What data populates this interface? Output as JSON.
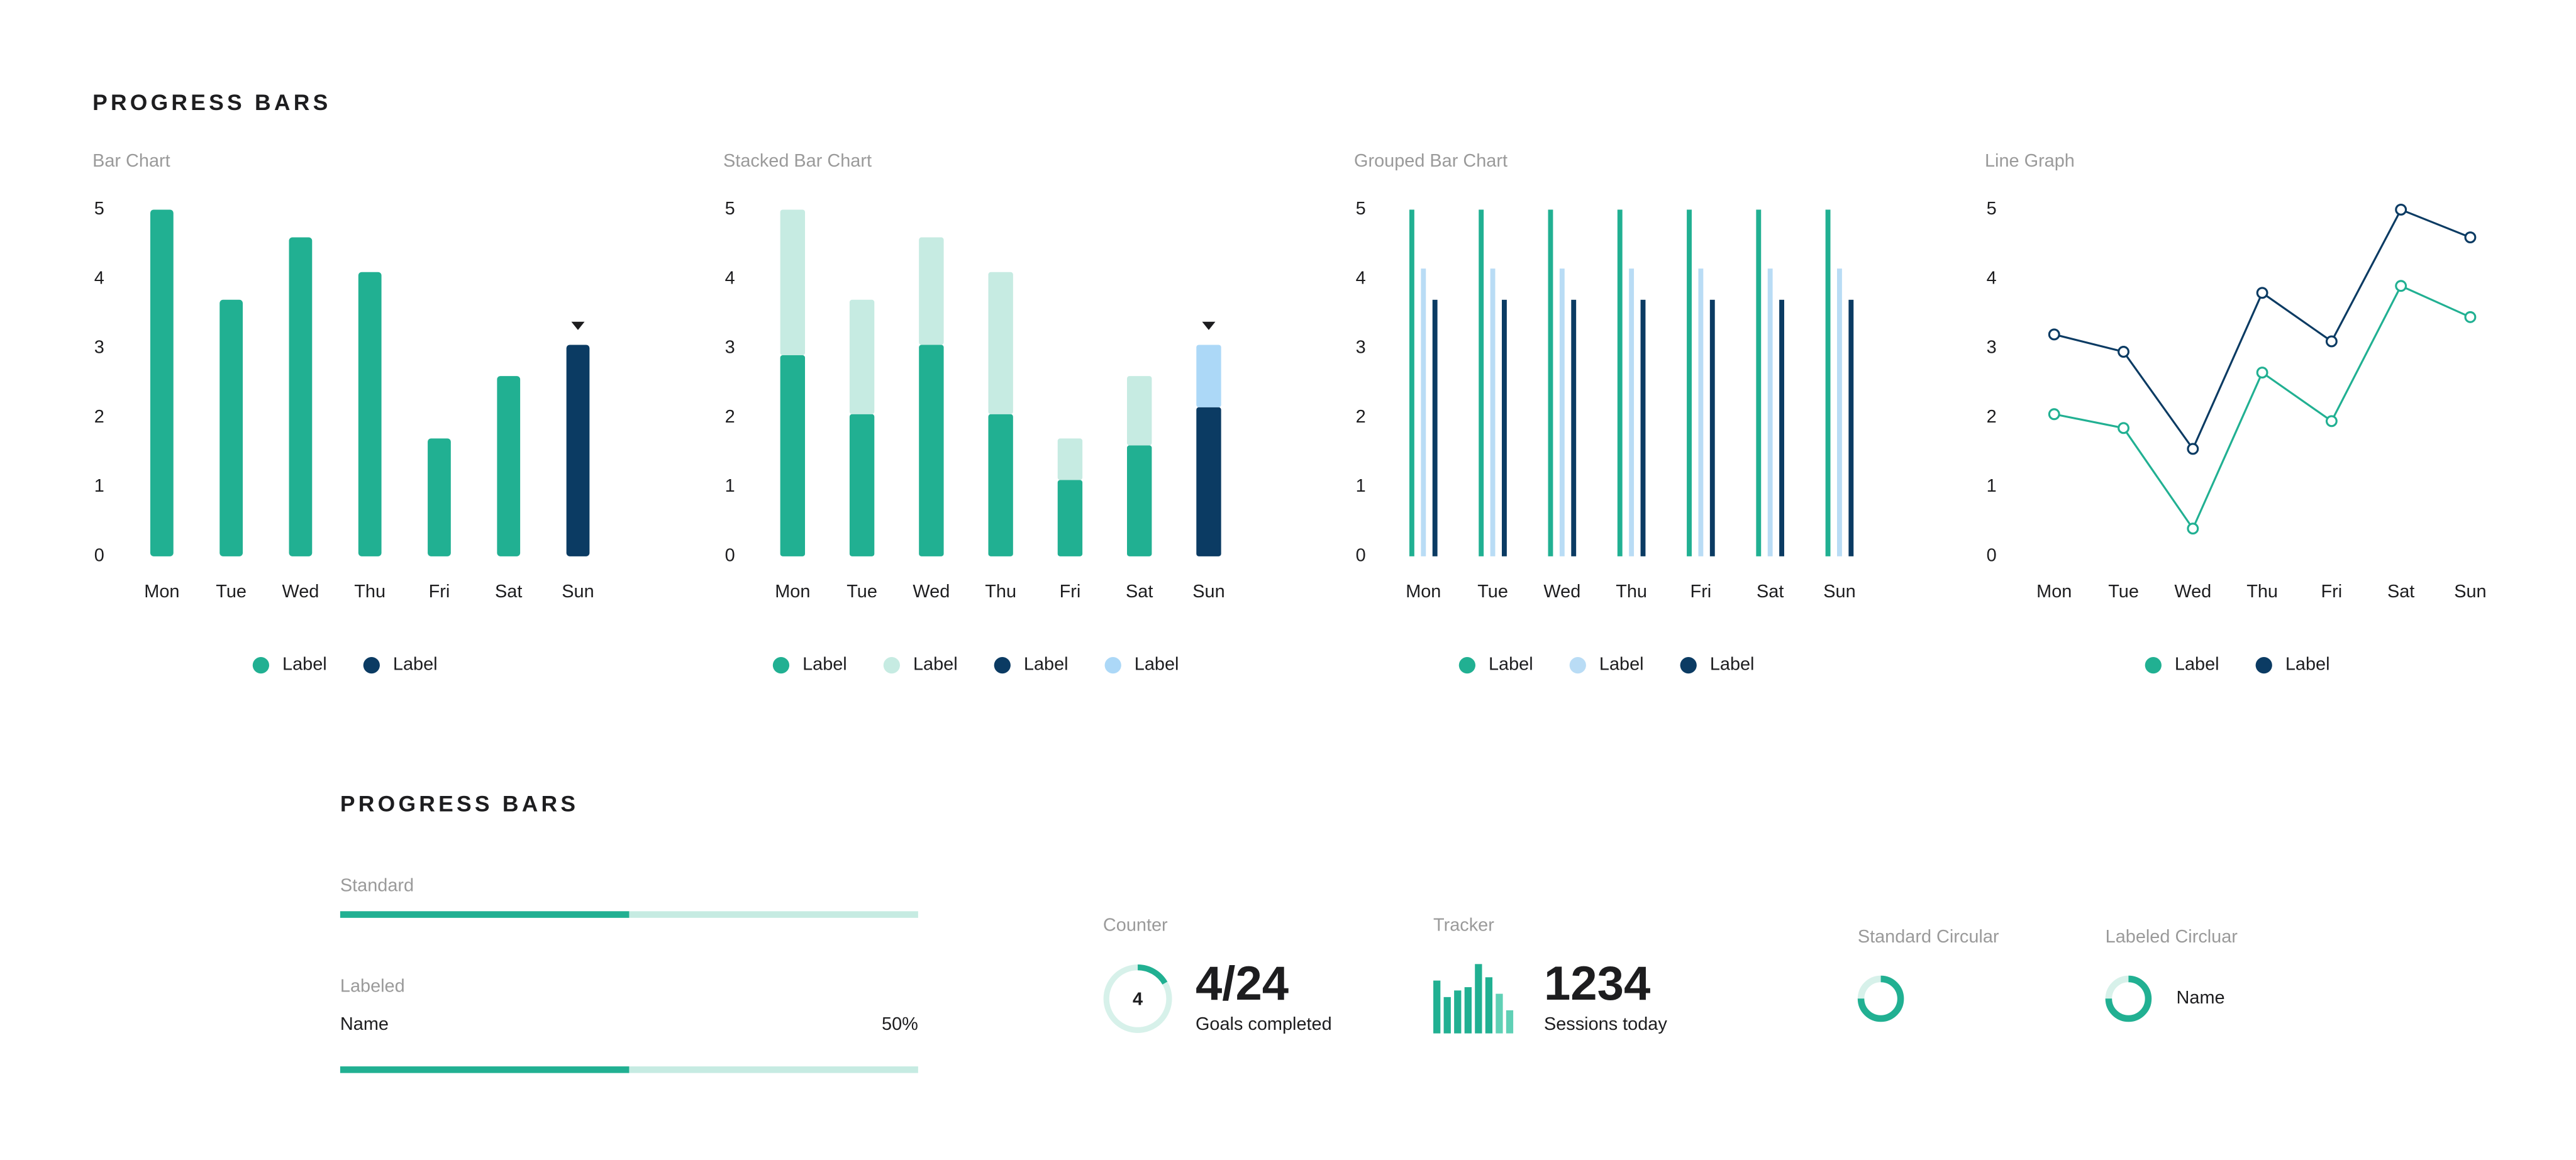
{
  "header": {
    "title": "PROGRESS BARS"
  },
  "chart_data": [
    {
      "type": "bar",
      "title": "Bar Chart",
      "categories": [
        "Mon",
        "Tue",
        "Wed",
        "Thu",
        "Fri",
        "Sat",
        "Sun"
      ],
      "series": [
        {
          "name": "Label",
          "color": "#21b092",
          "values": [
            5,
            3.7,
            4.6,
            4.1,
            1.7,
            2.6,
            null
          ]
        },
        {
          "name": "Label",
          "color": "#0b3b63",
          "values": [
            null,
            null,
            null,
            null,
            null,
            null,
            3.05
          ]
        }
      ],
      "ylim": [
        0,
        5
      ],
      "yticks": [
        0,
        1,
        2,
        3,
        4,
        5
      ],
      "pointer_series": 1
    },
    {
      "type": "stacked_bar",
      "title": "Stacked Bar Chart",
      "categories": [
        "Mon",
        "Tue",
        "Wed",
        "Thu",
        "Fri",
        "Sat",
        "Sun"
      ],
      "series": [
        {
          "name": "Label",
          "color": "#21b092",
          "values": [
            2.9,
            2.05,
            3.05,
            2.05,
            1.1,
            1.6,
            null
          ]
        },
        {
          "name": "Label",
          "color": "#c6ebe2",
          "values": [
            2.1,
            1.65,
            1.55,
            2.05,
            0.6,
            1.0,
            null
          ]
        },
        {
          "name": "Label",
          "color": "#0b3b63",
          "values": [
            null,
            null,
            null,
            null,
            null,
            null,
            2.15
          ]
        },
        {
          "name": "Label",
          "color": "#acd8f7",
          "values": [
            null,
            null,
            null,
            null,
            null,
            null,
            0.9
          ]
        }
      ],
      "ylim": [
        0,
        5
      ],
      "yticks": [
        0,
        1,
        2,
        3,
        4,
        5
      ],
      "pointer_series": 2
    },
    {
      "type": "grouped_bar",
      "title": "Grouped Bar Chart",
      "categories": [
        "Mon",
        "Tue",
        "Wed",
        "Thu",
        "Fri",
        "Sat",
        "Sun"
      ],
      "series": [
        {
          "name": "Label",
          "color": "#21b092",
          "values": [
            5,
            5,
            5,
            5,
            5,
            5,
            5
          ]
        },
        {
          "name": "Label",
          "color": "#b9dcf5",
          "values": [
            4.15,
            4.15,
            4.15,
            4.15,
            4.15,
            4.15,
            4.15
          ]
        },
        {
          "name": "Label",
          "color": "#0b3b63",
          "values": [
            3.7,
            3.7,
            3.7,
            3.7,
            3.7,
            3.7,
            3.7
          ]
        }
      ],
      "ylim": [
        0,
        5
      ],
      "yticks": [
        0,
        1,
        2,
        3,
        4,
        5
      ]
    },
    {
      "type": "line",
      "title": "Line Graph",
      "categories": [
        "Mon",
        "Tue",
        "Wed",
        "Thu",
        "Fri",
        "Sat",
        "Sun"
      ],
      "series": [
        {
          "name": "Label",
          "color": "#21b092",
          "values": [
            2.05,
            1.85,
            0.4,
            2.65,
            1.95,
            3.9,
            3.45
          ]
        },
        {
          "name": "Label",
          "color": "#0b3b63",
          "values": [
            3.2,
            2.95,
            1.55,
            3.8,
            3.1,
            5.0,
            4.6
          ]
        }
      ],
      "ylim": [
        0,
        5
      ],
      "yticks": [
        0,
        1,
        2,
        3,
        4,
        5
      ]
    }
  ],
  "progress": {
    "title": "PROGRESS BARS",
    "standard": {
      "label": "Standard",
      "value": 50
    },
    "labeled": {
      "label": "Labeled",
      "name": "Name",
      "value": 50,
      "value_label": "50%"
    },
    "counter": {
      "label": "Counter",
      "value": 4,
      "total": 24,
      "text": "4/24",
      "caption": "Goals completed"
    },
    "tracker": {
      "label": "Tracker",
      "number": "1234",
      "caption": "Sessions today",
      "bars": [
        32,
        22,
        26,
        28,
        42,
        34,
        24,
        14
      ],
      "colors": [
        "#21b092",
        "#21b092",
        "#21b092",
        "#21b092",
        "#21b092",
        "#21b092",
        "#5fd0b5",
        "#5fd0b5"
      ]
    },
    "standard_circular": {
      "label": "Standard Circular",
      "value": 75
    },
    "labeled_circular": {
      "label": "Labeled Circluar",
      "name": "Name",
      "value": 75
    }
  }
}
